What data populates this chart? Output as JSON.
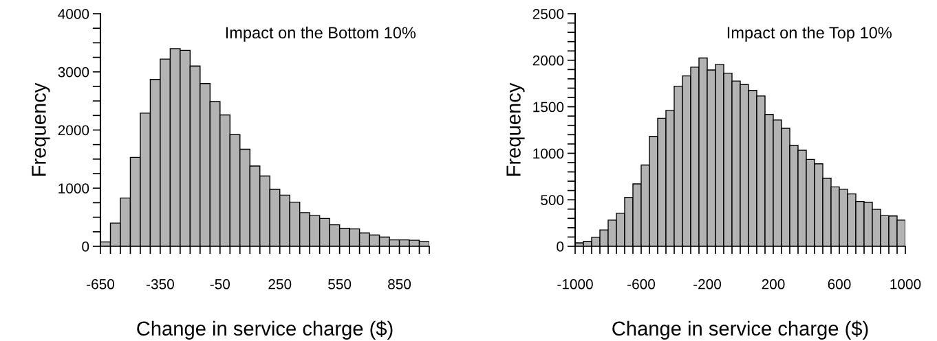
{
  "chart_data": [
    {
      "type": "histogram",
      "title": "Impact on the Bottom 10%",
      "xlabel": "Change in service charge ($)",
      "ylabel": "Frequency",
      "color": "#b3b3b3",
      "bins": [
        -650,
        -600,
        -550,
        -500,
        -450,
        -400,
        -350,
        -300,
        -250,
        -200,
        -150,
        -100,
        -50,
        0,
        50,
        100,
        150,
        200,
        250,
        300,
        350,
        400,
        450,
        500,
        550,
        600,
        650,
        700,
        750,
        800,
        850,
        900,
        950,
        1000
      ],
      "values": [
        75,
        400,
        830,
        1530,
        2290,
        2870,
        3220,
        3400,
        3370,
        3100,
        2800,
        2490,
        2260,
        1920,
        1670,
        1380,
        1210,
        980,
        880,
        760,
        580,
        530,
        480,
        370,
        310,
        300,
        230,
        195,
        160,
        110,
        110,
        105,
        80
      ],
      "xlim": [
        -650,
        1000
      ],
      "xticks": [
        -650,
        {
          "value": -600,
          "label": null
        },
        {
          "value": -550,
          "label": null
        },
        {
          "value": -500,
          "label": null
        },
        {
          "value": -450,
          "label": null
        },
        {
          "value": -400,
          "label": null
        },
        -350,
        {
          "value": -300,
          "label": null
        },
        {
          "value": -250,
          "label": null
        },
        {
          "value": -200,
          "label": null
        },
        {
          "value": -150,
          "label": null
        },
        {
          "value": -100,
          "label": null
        },
        -50,
        {
          "value": 0,
          "label": null
        },
        {
          "value": 50,
          "label": null
        },
        {
          "value": 100,
          "label": null
        },
        {
          "value": 150,
          "label": null
        },
        {
          "value": 200,
          "label": null
        },
        250,
        {
          "value": 300,
          "label": null
        },
        {
          "value": 350,
          "label": null
        },
        {
          "value": 400,
          "label": null
        },
        {
          "value": 450,
          "label": null
        },
        {
          "value": 500,
          "label": null
        },
        550,
        {
          "value": 600,
          "label": null
        },
        {
          "value": 650,
          "label": null
        },
        {
          "value": 700,
          "label": null
        },
        {
          "value": 750,
          "label": null
        },
        {
          "value": 800,
          "label": null
        },
        850,
        {
          "value": 900,
          "label": null
        },
        {
          "value": 950,
          "label": null
        },
        {
          "value": 1000,
          "label": null
        }
      ],
      "ylim": [
        0,
        4000
      ],
      "yticks": [
        0,
        {
          "value": 250,
          "label": null
        },
        {
          "value": 500,
          "label": null
        },
        {
          "value": 750,
          "label": null
        },
        1000,
        {
          "value": 1250,
          "label": null
        },
        {
          "value": 1500,
          "label": null
        },
        {
          "value": 1750,
          "label": null
        },
        2000,
        {
          "value": 2250,
          "label": null
        },
        {
          "value": 2500,
          "label": null
        },
        {
          "value": 2750,
          "label": null
        },
        3000,
        {
          "value": 3250,
          "label": null
        },
        {
          "value": 3500,
          "label": null
        },
        {
          "value": 3750,
          "label": null
        },
        4000
      ],
      "grid": false,
      "legend": false
    },
    {
      "type": "histogram",
      "title": "Impact on the Top 10%",
      "xlabel": "Change in service charge ($)",
      "ylabel": "Frequency",
      "color": "#b3b3b3",
      "bins": [
        -1000,
        -950,
        -900,
        -850,
        -800,
        -750,
        -700,
        -650,
        -600,
        -550,
        -500,
        -450,
        -400,
        -350,
        -300,
        -250,
        -200,
        -150,
        -100,
        -50,
        0,
        50,
        100,
        150,
        200,
        250,
        300,
        350,
        400,
        450,
        500,
        550,
        600,
        650,
        700,
        750,
        800,
        850,
        900,
        950,
        1000
      ],
      "values": [
        37,
        53,
        97,
        176,
        282,
        355,
        526,
        671,
        874,
        1182,
        1376,
        1461,
        1721,
        1832,
        1926,
        2024,
        1895,
        1955,
        1861,
        1776,
        1739,
        1676,
        1616,
        1418,
        1358,
        1268,
        1084,
        1032,
        934,
        887,
        732,
        639,
        613,
        563,
        482,
        474,
        397,
        329,
        326,
        282
      ],
      "xlim": [
        -1000,
        1000
      ],
      "xticks": [
        -1000,
        {
          "value": -950,
          "label": null
        },
        {
          "value": -900,
          "label": null
        },
        {
          "value": -850,
          "label": null
        },
        {
          "value": -800,
          "label": null
        },
        {
          "value": -750,
          "label": null
        },
        {
          "value": -700,
          "label": null
        },
        {
          "value": -650,
          "label": null
        },
        -600,
        {
          "value": -550,
          "label": null
        },
        {
          "value": -500,
          "label": null
        },
        {
          "value": -450,
          "label": null
        },
        {
          "value": -400,
          "label": null
        },
        {
          "value": -350,
          "label": null
        },
        {
          "value": -300,
          "label": null
        },
        {
          "value": -250,
          "label": null
        },
        -200,
        {
          "value": -150,
          "label": null
        },
        {
          "value": -100,
          "label": null
        },
        {
          "value": -50,
          "label": null
        },
        {
          "value": 0,
          "label": null
        },
        {
          "value": 50,
          "label": null
        },
        {
          "value": 100,
          "label": null
        },
        {
          "value": 150,
          "label": null
        },
        200,
        {
          "value": 250,
          "label": null
        },
        {
          "value": 300,
          "label": null
        },
        {
          "value": 350,
          "label": null
        },
        {
          "value": 400,
          "label": null
        },
        {
          "value": 450,
          "label": null
        },
        {
          "value": 500,
          "label": null
        },
        {
          "value": 550,
          "label": null
        },
        600,
        {
          "value": 650,
          "label": null
        },
        {
          "value": 700,
          "label": null
        },
        {
          "value": 750,
          "label": null
        },
        {
          "value": 800,
          "label": null
        },
        {
          "value": 850,
          "label": null
        },
        {
          "value": 900,
          "label": null
        },
        {
          "value": 950,
          "label": null
        },
        1000
      ],
      "ylim": [
        0,
        2500
      ],
      "yticks": [
        0,
        {
          "value": 100,
          "label": null
        },
        {
          "value": 200,
          "label": null
        },
        {
          "value": 300,
          "label": null
        },
        {
          "value": 400,
          "label": null
        },
        500,
        {
          "value": 600,
          "label": null
        },
        {
          "value": 700,
          "label": null
        },
        {
          "value": 800,
          "label": null
        },
        {
          "value": 900,
          "label": null
        },
        1000,
        {
          "value": 1100,
          "label": null
        },
        {
          "value": 1200,
          "label": null
        },
        {
          "value": 1300,
          "label": null
        },
        {
          "value": 1400,
          "label": null
        },
        1500,
        {
          "value": 1600,
          "label": null
        },
        {
          "value": 1700,
          "label": null
        },
        {
          "value": 1800,
          "label": null
        },
        {
          "value": 1900,
          "label": null
        },
        2000,
        {
          "value": 2100,
          "label": null
        },
        {
          "value": 2200,
          "label": null
        },
        {
          "value": 2300,
          "label": null
        },
        {
          "value": 2400,
          "label": null
        },
        2500
      ],
      "grid": false,
      "legend": false
    }
  ]
}
